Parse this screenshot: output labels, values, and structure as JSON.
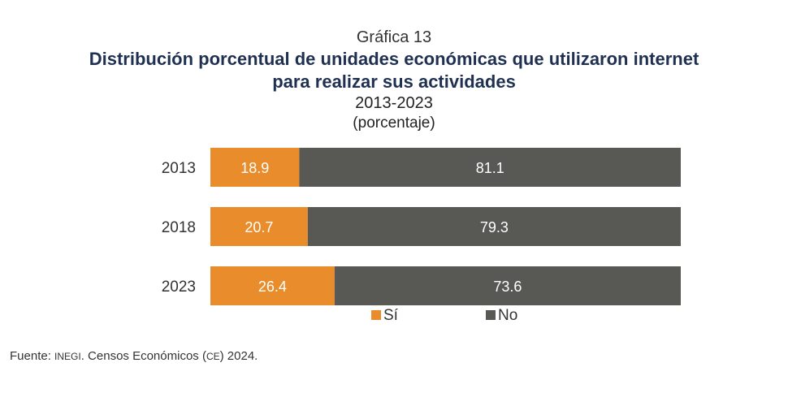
{
  "header": {
    "chart_number": "Gráfica 13",
    "title_line1": "Distribución porcentual de unidades económicas que utilizaron internet",
    "title_line2": "para realizar sus actividades",
    "period": "2013-2023",
    "units": "(porcentaje)"
  },
  "source": {
    "prefix": "Fuente: ",
    "org": "INEGI",
    "middle": ". Censos Económicos (",
    "abbr": "CE",
    "suffix": ") 2024."
  },
  "chart_data": {
    "type": "bar",
    "orientation": "horizontal",
    "stacked": true,
    "categories": [
      "2013",
      "2018",
      "2023"
    ],
    "series": [
      {
        "name": "Sí",
        "values": [
          18.9,
          20.7,
          26.4
        ],
        "color": "#e98c2b"
      },
      {
        "name": "No",
        "values": [
          81.1,
          79.3,
          73.6
        ],
        "color": "#585855"
      }
    ],
    "xlim": [
      0,
      100
    ],
    "grid": false,
    "legend": "bottom-center",
    "data_labels": true
  }
}
